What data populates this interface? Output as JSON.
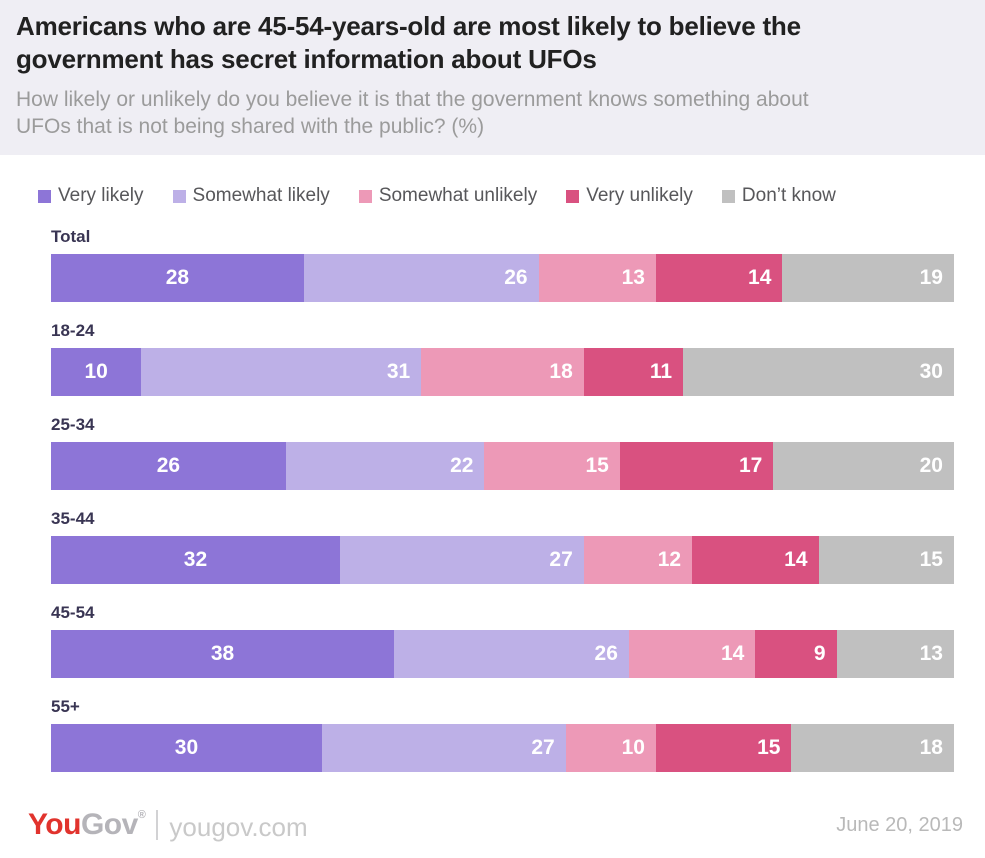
{
  "header": {
    "title": "Americans who are 45-54-years-old are most likely to believe the government has secret information about UFOs",
    "subtitle": "How likely or unlikely do you believe it is that the government knows something about UFOs that is not being shared with the public? (%)"
  },
  "colors": {
    "header_background": "#efeef4",
    "very_likely": "#8d75d7",
    "somewhat_likely": "#bdb0e7",
    "somewhat_unlikely": "#ed99b7",
    "very_unlikely": "#d95180",
    "dont_know": "#c0c0c0",
    "row_label": "#393553",
    "value_label": "#ffffff"
  },
  "chart_data": {
    "type": "bar",
    "stacked": true,
    "orientation": "horizontal",
    "title": "Americans who are 45-54-years-old are most likely to believe the government has secret information about UFOs",
    "xlabel": "",
    "ylabel": "",
    "xlim": [
      0,
      100
    ],
    "units": "%",
    "grid": false,
    "legend_position": "top",
    "categories": [
      "Total",
      "18-24",
      "25-34",
      "35-44",
      "45-54",
      "55+"
    ],
    "series": [
      {
        "name": "Very likely",
        "color": "#8d75d7",
        "values": [
          28,
          10,
          26,
          32,
          38,
          30
        ]
      },
      {
        "name": "Somewhat likely",
        "color": "#bdb0e7",
        "values": [
          26,
          31,
          22,
          27,
          26,
          27
        ]
      },
      {
        "name": "Somewhat unlikely",
        "color": "#ed99b7",
        "values": [
          13,
          18,
          15,
          12,
          14,
          10
        ]
      },
      {
        "name": "Very unlikely",
        "color": "#d95180",
        "values": [
          14,
          11,
          17,
          14,
          9,
          15
        ]
      },
      {
        "name": "Don’t know",
        "color": "#c0c0c0",
        "values": [
          19,
          30,
          20,
          15,
          13,
          18
        ]
      }
    ]
  },
  "footer": {
    "logo_you": "You",
    "logo_gov": "Gov",
    "logo_mark": "®",
    "site": "yougov.com",
    "date": "June 20, 2019"
  }
}
